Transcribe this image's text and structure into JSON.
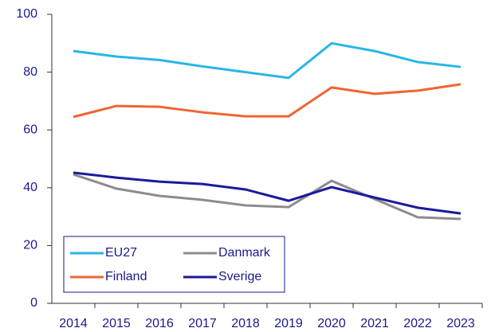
{
  "chart_data": {
    "type": "line",
    "categories": [
      "2014",
      "2015",
      "2016",
      "2017",
      "2018",
      "2019",
      "2020",
      "2021",
      "2022",
      "2023"
    ],
    "series": [
      {
        "name": "EU27",
        "color": "#29b6e8",
        "values": [
          87.3,
          85.4,
          84.2,
          82,
          80,
          78,
          90,
          87.3,
          83.5,
          81.8
        ]
      },
      {
        "name": "Danmark",
        "color": "#8c8c8c",
        "values": [
          44.6,
          39.7,
          37.2,
          35.8,
          33.9,
          33.3,
          42.4,
          36.1,
          29.8,
          29.2
        ]
      },
      {
        "name": "Finland",
        "color": "#ee6633",
        "values": [
          64.5,
          68.3,
          68,
          66.1,
          64.7,
          64.7,
          74.7,
          72.5,
          73.6,
          75.8
        ]
      },
      {
        "name": "Sverige",
        "color": "#1a1a9c",
        "values": [
          45.2,
          43.5,
          42.1,
          41.3,
          39.4,
          35.5,
          40.2,
          36.6,
          33.1,
          31.1
        ]
      }
    ],
    "ylim": [
      0,
      100
    ],
    "yticks": [
      0,
      20,
      40,
      60,
      80,
      100
    ],
    "grid": false,
    "legend": "lower left"
  }
}
